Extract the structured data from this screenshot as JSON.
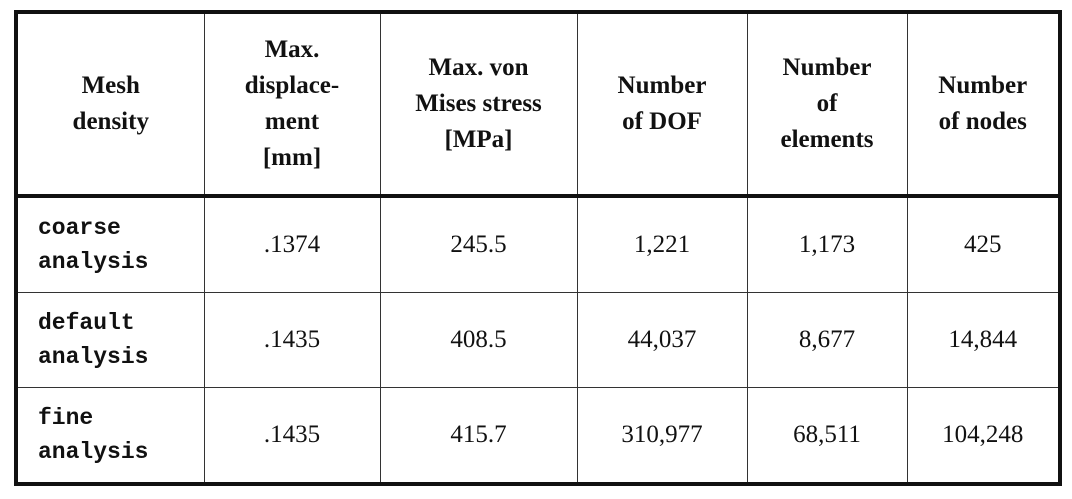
{
  "table": {
    "header": [
      [
        "Mesh",
        "density"
      ],
      [
        "Max.",
        "displace-",
        "ment",
        "[mm]"
      ],
      [
        "Max. von",
        "Mises stress",
        "[MPa]"
      ],
      [
        "Number",
        "of DOF"
      ],
      [
        "Number",
        "of",
        "elements"
      ],
      [
        "Number",
        "of nodes"
      ]
    ],
    "rows": [
      [
        [
          "coarse",
          "analysis"
        ],
        ".1374",
        "245.5",
        "1,221",
        "1,173",
        "425"
      ],
      [
        [
          "default",
          "analysis"
        ],
        ".1435",
        "408.5",
        "44,037",
        "8,677",
        "14,844"
      ],
      [
        [
          "fine",
          "analysis"
        ],
        ".1435",
        "415.7",
        "310,977",
        "68,511",
        "104,248"
      ]
    ]
  }
}
